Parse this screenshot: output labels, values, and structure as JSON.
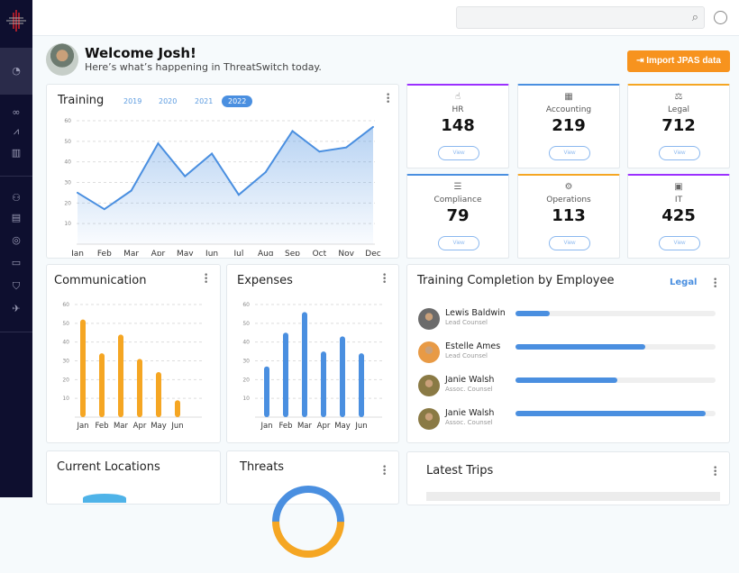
{
  "header": {
    "search_placeholder": "",
    "search_icon": "search-icon",
    "user_icon": "user-circle-icon"
  },
  "sidebar": {
    "items": [
      "dashboard-icon",
      "binoculars-icon",
      "area-chart-icon",
      "bar-chart-person-icon",
      "people-icon",
      "building-icon",
      "globe-search-icon",
      "laptop-icon",
      "shield-icon",
      "travel-icon"
    ]
  },
  "welcome": {
    "title": "Welcome Josh!",
    "subtitle": "Here’s what’s happening in ThreatSwitch today.",
    "import_label": "Import JPAS data",
    "import_color": "#f7931e"
  },
  "training": {
    "title": "Training",
    "years": [
      "2019",
      "2020",
      "2021",
      "2022"
    ],
    "selected_year": "2022"
  },
  "departments": [
    {
      "name": "HR",
      "count": "148",
      "view": "View",
      "accent": "#9b30ff",
      "icon": "person-hand-icon"
    },
    {
      "name": "Accounting",
      "count": "219",
      "view": "View",
      "accent": "#4a8fe0",
      "icon": "calculator-icon"
    },
    {
      "name": "Legal",
      "count": "712",
      "view": "View",
      "accent": "#f5a623",
      "icon": "scales-icon"
    },
    {
      "name": "Compliance",
      "count": "79",
      "view": "View",
      "accent": "#4a8fe0",
      "icon": "scroll-icon"
    },
    {
      "name": "Operations",
      "count": "113",
      "view": "View",
      "accent": "#f5a623",
      "icon": "gears-icon"
    },
    {
      "name": "IT",
      "count": "425",
      "view": "View",
      "accent": "#9b30ff",
      "icon": "monitor-icon"
    }
  ],
  "completion": {
    "title": "Training Completion by Employee",
    "filter": "Legal",
    "employees": [
      {
        "name": "Lewis Baldwin",
        "role": "Lead Counsel",
        "progress": 17
      },
      {
        "name": "Estelle Ames",
        "role": "Lead Counsel",
        "progress": 65
      },
      {
        "name": "Janie Walsh",
        "role": "Assoc. Counsel",
        "progress": 51
      },
      {
        "name": "Janie Walsh",
        "role": "Assoc. Counsel",
        "progress": 95
      }
    ]
  },
  "bottom": {
    "locations_title": "Current Locations",
    "threats_title": "Threats",
    "trips_title": "Latest Trips"
  },
  "chart_data": [
    {
      "type": "area",
      "title": "Training",
      "categories": [
        "Jan",
        "Feb",
        "Mar",
        "Apr",
        "May",
        "Jun",
        "Jul",
        "Aug",
        "Sep",
        "Oct",
        "Nov",
        "Dec"
      ],
      "values": [
        25,
        17,
        26,
        49,
        33,
        44,
        24,
        35,
        55,
        45,
        47,
        57
      ],
      "ylim": [
        0,
        60
      ],
      "yticks": [
        10,
        20,
        30,
        40,
        50,
        60
      ],
      "grid": true,
      "color": "#4a8fe0"
    },
    {
      "type": "bar",
      "title": "Communication",
      "categories": [
        "Jan",
        "Feb",
        "Mar",
        "Apr",
        "May",
        "Jun"
      ],
      "values": [
        52,
        34,
        44,
        31,
        24,
        9
      ],
      "ylim": [
        0,
        60
      ],
      "yticks": [
        10,
        20,
        30,
        40,
        50,
        60
      ],
      "grid": true,
      "color": "#f5a623"
    },
    {
      "type": "bar",
      "title": "Expenses",
      "categories": [
        "Jan",
        "Feb",
        "Mar",
        "Apr",
        "May",
        "Jun"
      ],
      "values": [
        27,
        45,
        56,
        35,
        43,
        34
      ],
      "ylim": [
        0,
        60
      ],
      "yticks": [
        10,
        20,
        30,
        40,
        50,
        60
      ],
      "grid": true,
      "color": "#4a8fe0"
    }
  ]
}
